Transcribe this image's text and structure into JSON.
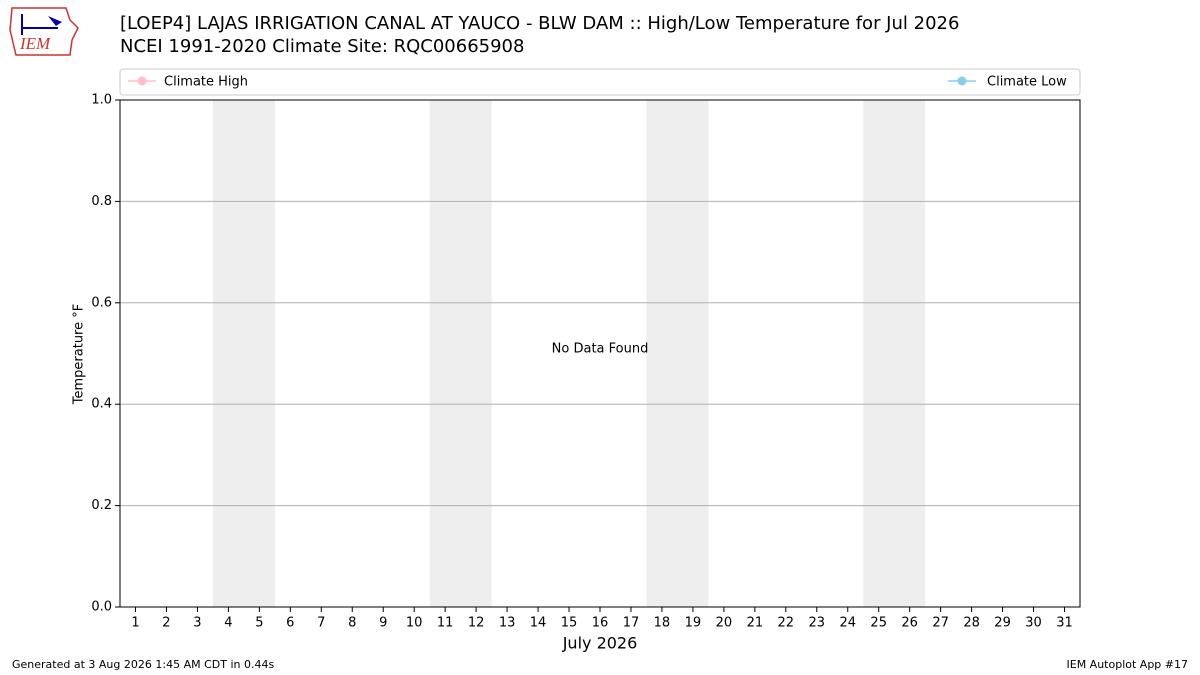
{
  "chart_data": {
    "type": "line",
    "title": "[LOEP4] LAJAS IRRIGATION CANAL  AT YAUCO - BLW DAM :: High/Low Temperature for Jul 2026",
    "subtitle": "NCEI 1991-2020 Climate Site: RQC00665908",
    "xlabel": "July 2026",
    "ylabel": "Temperature °F",
    "annotation": "No Data Found",
    "series": [
      {
        "name": "Climate High",
        "color": "pink",
        "values": []
      },
      {
        "name": "Climate Low",
        "color": "skyblue",
        "values": []
      }
    ],
    "xlim": [
      0.5,
      31.5
    ],
    "xticks": [
      1,
      2,
      3,
      4,
      5,
      6,
      7,
      8,
      9,
      10,
      11,
      12,
      13,
      14,
      15,
      16,
      17,
      18,
      19,
      20,
      21,
      22,
      23,
      24,
      25,
      26,
      27,
      28,
      29,
      30,
      31
    ],
    "ylim": [
      0,
      1
    ],
    "yticks": [
      {
        "value": 0,
        "label": "0.0"
      },
      {
        "value": 0.2,
        "label": "0.2"
      },
      {
        "value": 0.4,
        "label": "0.4"
      },
      {
        "value": 0.6,
        "label": "0.6"
      },
      {
        "value": 0.8,
        "label": "0.8"
      },
      {
        "value": 1,
        "label": "1.0"
      }
    ],
    "grid": true,
    "weekend_spans": [
      [
        3.5,
        5.5
      ],
      [
        10.5,
        12.5
      ],
      [
        17.5,
        19.5
      ],
      [
        24.5,
        26.5
      ]
    ],
    "weekend_color": "#eeeeee"
  },
  "footer": {
    "left": "Generated at 3 Aug 2026 1:45 AM CDT in 0.44s",
    "right": "IEM Autoplot App #17"
  },
  "logo": {
    "text": "IEM"
  }
}
